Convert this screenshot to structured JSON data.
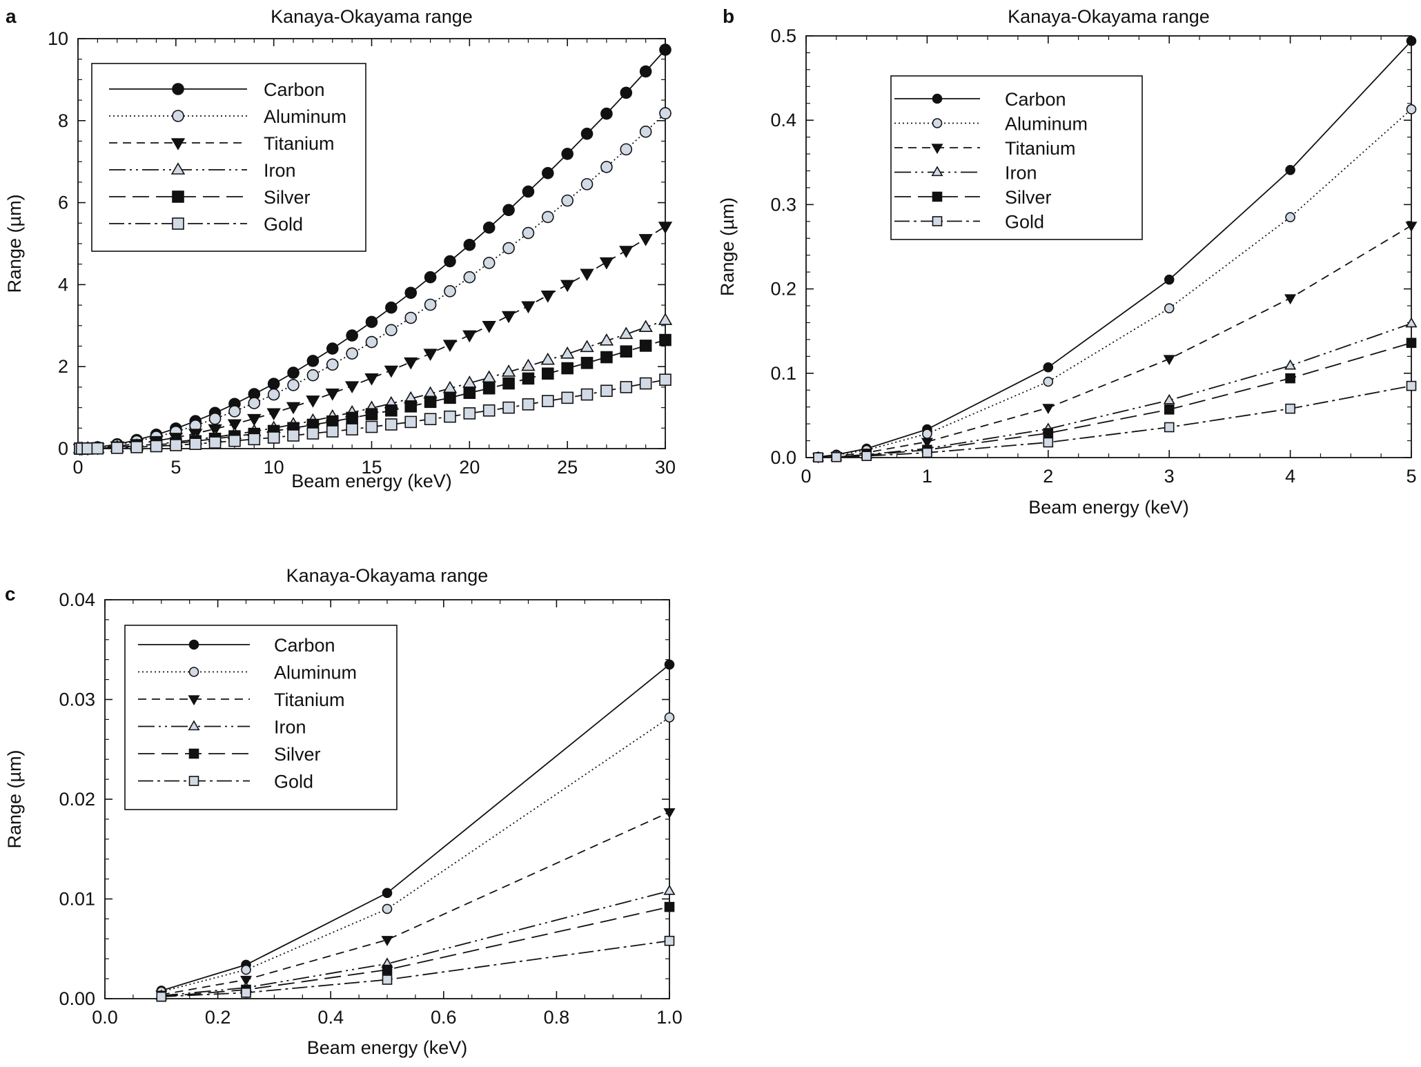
{
  "chart_data": [
    {
      "type": "line",
      "panel_label": "a",
      "title": "Kanaya-Okayama range",
      "xlabel": "Beam energy (keV)",
      "ylabel": "Range (µm)",
      "xlim": [
        0,
        30
      ],
      "ylim": [
        0,
        10
      ],
      "xticks": [
        "0",
        "5",
        "10",
        "15",
        "20",
        "25",
        "30"
      ],
      "yticks": [
        "0",
        "2",
        "4",
        "6",
        "8",
        "10"
      ],
      "grid": false,
      "legend_position": "top-left",
      "x": [
        0.1,
        0.2,
        0.5,
        1,
        2,
        3,
        4,
        5,
        6,
        7,
        8,
        9,
        10,
        11,
        12,
        13,
        14,
        15,
        16,
        17,
        18,
        19,
        20,
        21,
        22,
        23,
        24,
        25,
        26,
        27,
        28,
        29,
        30
      ],
      "series": [
        {
          "name": "Carbon",
          "values": [
            0.0003,
            0.0013,
            0.0106,
            0.0335,
            0.107,
            0.21,
            0.34,
            0.49,
            0.67,
            0.87,
            1.09,
            1.33,
            1.58,
            1.85,
            2.14,
            2.44,
            2.76,
            3.09,
            3.44,
            3.8,
            4.18,
            4.57,
            4.97,
            5.39,
            5.82,
            6.27,
            6.72,
            7.19,
            7.68,
            8.17,
            8.68,
            9.2,
            9.73
          ]
        },
        {
          "name": "Aluminum",
          "values": [
            0.0003,
            0.0011,
            0.0089,
            0.0282,
            0.09,
            0.177,
            0.286,
            0.41,
            0.56,
            0.73,
            0.91,
            1.11,
            1.32,
            1.55,
            1.79,
            2.05,
            2.32,
            2.6,
            2.89,
            3.19,
            3.51,
            3.84,
            4.18,
            4.53,
            4.89,
            5.26,
            5.65,
            6.05,
            6.45,
            6.87,
            7.3,
            7.73,
            8.18
          ]
        },
        {
          "name": "Titanium",
          "values": [
            0.0002,
            0.0007,
            0.0059,
            0.0187,
            0.06,
            0.117,
            0.19,
            0.27,
            0.37,
            0.48,
            0.6,
            0.73,
            0.87,
            1.02,
            1.18,
            1.35,
            1.53,
            1.72,
            1.91,
            2.11,
            2.32,
            2.54,
            2.77,
            3.0,
            3.24,
            3.48,
            3.74,
            4.0,
            4.27,
            4.55,
            4.83,
            5.12,
            5.42
          ]
        },
        {
          "name": "Iron",
          "values": [
            0.0001,
            0.0004,
            0.0034,
            0.0108,
            0.034,
            0.068,
            0.109,
            0.16,
            0.22,
            0.28,
            0.35,
            0.42,
            0.5,
            0.59,
            0.68,
            0.78,
            0.88,
            0.99,
            1.1,
            1.22,
            1.34,
            1.47,
            1.6,
            1.73,
            1.87,
            2.01,
            2.16,
            2.31,
            2.47,
            2.63,
            2.79,
            2.96,
            3.13
          ]
        },
        {
          "name": "Silver",
          "values": [
            0.0001,
            0.0004,
            0.0029,
            0.0092,
            0.029,
            0.057,
            0.093,
            0.13,
            0.18,
            0.24,
            0.3,
            0.36,
            0.43,
            0.5,
            0.58,
            0.66,
            0.75,
            0.84,
            0.93,
            1.03,
            1.14,
            1.24,
            1.36,
            1.47,
            1.59,
            1.71,
            1.83,
            1.96,
            2.09,
            2.23,
            2.37,
            2.51,
            2.65
          ]
        },
        {
          "name": "Gold",
          "values": [
            0.0001,
            0.0002,
            0.0018,
            0.0058,
            0.019,
            0.036,
            0.059,
            0.085,
            0.115,
            0.15,
            0.19,
            0.23,
            0.27,
            0.32,
            0.37,
            0.42,
            0.47,
            0.53,
            0.59,
            0.65,
            0.72,
            0.78,
            0.86,
            0.93,
            1.0,
            1.08,
            1.16,
            1.24,
            1.32,
            1.41,
            1.5,
            1.59,
            1.68
          ]
        }
      ]
    },
    {
      "type": "line",
      "panel_label": "b",
      "title": "Kanaya-Okayama range",
      "xlabel": "Beam energy (keV)",
      "ylabel": "Range (µm)",
      "xlim": [
        0,
        5
      ],
      "ylim": [
        0,
        0.5
      ],
      "xticks": [
        "0",
        "1",
        "2",
        "3",
        "4",
        "5"
      ],
      "yticks": [
        "0.0",
        "0.1",
        "0.2",
        "0.3",
        "0.4",
        "0.5"
      ],
      "grid": false,
      "legend_position": "top-left",
      "x": [
        0.1,
        0.25,
        0.5,
        1,
        2,
        3,
        4,
        5
      ],
      "series": [
        {
          "name": "Carbon",
          "values": [
            0.0008,
            0.0034,
            0.0106,
            0.0335,
            0.107,
            0.211,
            0.341,
            0.494
          ]
        },
        {
          "name": "Aluminum",
          "values": [
            0.0007,
            0.0029,
            0.0089,
            0.0282,
            0.09,
            0.177,
            0.285,
            0.413
          ]
        },
        {
          "name": "Titanium",
          "values": [
            0.0004,
            0.0019,
            0.0059,
            0.0187,
            0.059,
            0.117,
            0.189,
            0.275
          ]
        },
        {
          "name": "Iron",
          "values": [
            0.0003,
            0.0011,
            0.0035,
            0.0108,
            0.034,
            0.068,
            0.109,
            0.159
          ]
        },
        {
          "name": "Silver",
          "values": [
            0.0002,
            0.0009,
            0.0029,
            0.0092,
            0.029,
            0.057,
            0.094,
            0.136
          ]
        },
        {
          "name": "Gold",
          "values": [
            0.0002,
            0.0006,
            0.0019,
            0.0058,
            0.018,
            0.036,
            0.058,
            0.085
          ]
        }
      ]
    },
    {
      "type": "line",
      "panel_label": "c",
      "title": "Kanaya-Okayama range",
      "xlabel": "Beam energy (keV)",
      "ylabel": "Range (µm)",
      "xlim": [
        0,
        1
      ],
      "ylim": [
        0,
        0.04
      ],
      "xticks": [
        "0.0",
        "0.2",
        "0.4",
        "0.6",
        "0.8",
        "1.0"
      ],
      "yticks": [
        "0.00",
        "0.01",
        "0.02",
        "0.03",
        "0.04"
      ],
      "grid": false,
      "legend_position": "top-left",
      "x": [
        0.1,
        0.25,
        0.5,
        1.0
      ],
      "series": [
        {
          "name": "Carbon",
          "values": [
            0.0008,
            0.0034,
            0.0106,
            0.0335
          ]
        },
        {
          "name": "Aluminum",
          "values": [
            0.0007,
            0.0029,
            0.009,
            0.0282
          ]
        },
        {
          "name": "Titanium",
          "values": [
            0.0004,
            0.0019,
            0.0059,
            0.0187
          ]
        },
        {
          "name": "Iron",
          "values": [
            0.0003,
            0.0011,
            0.0035,
            0.0108
          ]
        },
        {
          "name": "Silver",
          "values": [
            0.0002,
            0.0009,
            0.0029,
            0.0092
          ]
        },
        {
          "name": "Gold",
          "values": [
            0.0002,
            0.0006,
            0.0019,
            0.0058
          ]
        }
      ]
    }
  ],
  "series_styles": [
    {
      "marker": "circle",
      "fill": "#111111",
      "dash": ""
    },
    {
      "marker": "circle",
      "fill": "#d2dae6",
      "dash": "2 4"
    },
    {
      "marker": "triangle-down",
      "fill": "#111111",
      "dash": "12 8"
    },
    {
      "marker": "triangle-up",
      "fill": "#d2dae6",
      "dash": "24 6 3 6 3 6"
    },
    {
      "marker": "square",
      "fill": "#111111",
      "dash": "24 10"
    },
    {
      "marker": "square",
      "fill": "#d2dae6",
      "dash": "22 6 4 6"
    }
  ]
}
